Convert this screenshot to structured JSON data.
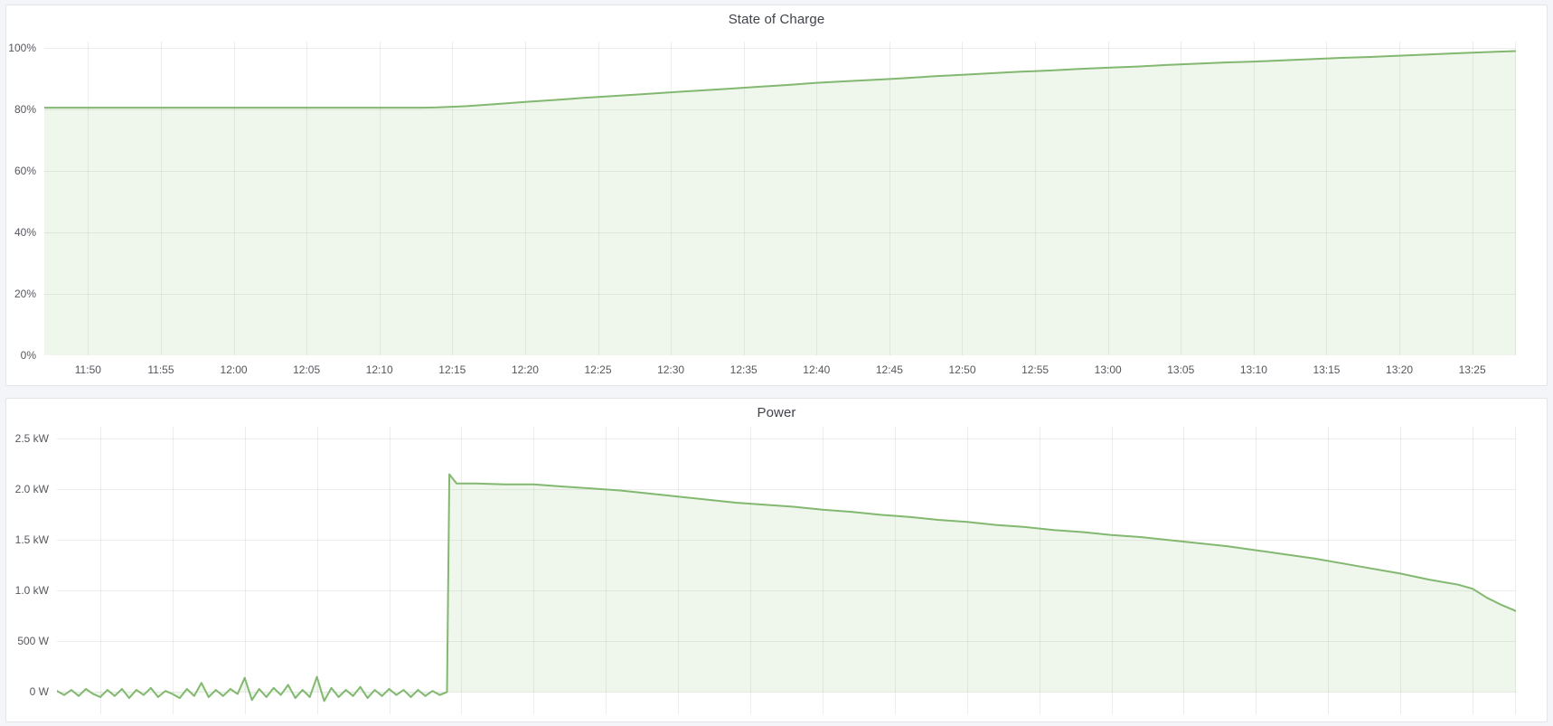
{
  "app": "dashboard",
  "colors": {
    "page_bg": "#f4f5f9",
    "panel_bg": "#ffffff",
    "panel_border": "#e4e5e9",
    "title_text": "#3f434a",
    "axis_text": "#55575d",
    "grid": "rgba(0,0,0,0.07)",
    "series_line": "#82b870",
    "series_fill": "rgba(130,184,112,0.13)"
  },
  "chart_data": [
    {
      "type": "area",
      "title": "State of Charge",
      "xlabel": "",
      "ylabel": "",
      "x_start": "11:47",
      "x_end": "13:28",
      "x_ticks": [
        "11:50",
        "11:55",
        "12:00",
        "12:05",
        "12:10",
        "12:15",
        "12:20",
        "12:25",
        "12:30",
        "12:35",
        "12:40",
        "12:45",
        "12:50",
        "12:55",
        "13:00",
        "13:05",
        "13:10",
        "13:15",
        "13:20",
        "13:25"
      ],
      "x_labels_visible": true,
      "ylim": [
        0,
        102
      ],
      "y_ticks": [
        {
          "value": 0,
          "label": "0%"
        },
        {
          "value": 20,
          "label": "20%"
        },
        {
          "value": 40,
          "label": "40%"
        },
        {
          "value": 60,
          "label": "60%"
        },
        {
          "value": 80,
          "label": "80%"
        },
        {
          "value": 100,
          "label": "100%"
        }
      ],
      "grid": true,
      "legend_position": "none",
      "baseline": 0,
      "series": [
        {
          "name": "State of Charge (%)",
          "points": [
            [
              "11:47",
              80.5
            ],
            [
              "11:55",
              80.5
            ],
            [
              "12:05",
              80.5
            ],
            [
              "12:13",
              80.5
            ],
            [
              "12:14",
              80.6
            ],
            [
              "12:16",
              81.0
            ],
            [
              "12:18",
              81.7
            ],
            [
              "12:20",
              82.4
            ],
            [
              "12:22",
              83.0
            ],
            [
              "12:24",
              83.7
            ],
            [
              "12:26",
              84.3
            ],
            [
              "12:28",
              84.9
            ],
            [
              "12:30",
              85.5
            ],
            [
              "12:32",
              86.1
            ],
            [
              "12:34",
              86.7
            ],
            [
              "12:36",
              87.3
            ],
            [
              "12:38",
              87.9
            ],
            [
              "12:40",
              88.6
            ],
            [
              "12:42",
              89.1
            ],
            [
              "12:44",
              89.6
            ],
            [
              "12:46",
              90.1
            ],
            [
              "12:48",
              90.7
            ],
            [
              "12:50",
              91.2
            ],
            [
              "12:52",
              91.7
            ],
            [
              "12:54",
              92.2
            ],
            [
              "12:56",
              92.6
            ],
            [
              "12:58",
              93.1
            ],
            [
              "13:00",
              93.5
            ],
            [
              "13:02",
              93.9
            ],
            [
              "13:04",
              94.4
            ],
            [
              "13:06",
              94.8
            ],
            [
              "13:08",
              95.2
            ],
            [
              "13:10",
              95.5
            ],
            [
              "13:12",
              95.9
            ],
            [
              "13:14",
              96.3
            ],
            [
              "13:16",
              96.7
            ],
            [
              "13:18",
              97.0
            ],
            [
              "13:20",
              97.4
            ],
            [
              "13:22",
              97.8
            ],
            [
              "13:24",
              98.2
            ],
            [
              "13:26",
              98.6
            ],
            [
              "13:28",
              98.9
            ]
          ]
        }
      ]
    },
    {
      "type": "area",
      "title": "Power",
      "xlabel": "",
      "ylabel": "",
      "x_start": "11:47",
      "x_end": "13:28",
      "x_ticks": [
        "11:50",
        "11:55",
        "12:00",
        "12:05",
        "12:10",
        "12:15",
        "12:20",
        "12:25",
        "12:30",
        "12:35",
        "12:40",
        "12:45",
        "12:50",
        "12:55",
        "13:00",
        "13:05",
        "13:10",
        "13:15",
        "13:20",
        "13:25"
      ],
      "x_labels_visible": false,
      "ylim": [
        -0.22,
        2.62
      ],
      "y_ticks": [
        {
          "value": 0,
          "label": "0 W"
        },
        {
          "value": 0.5,
          "label": "500 W"
        },
        {
          "value": 1.0,
          "label": "1.0 kW"
        },
        {
          "value": 1.5,
          "label": "1.5 kW"
        },
        {
          "value": 2.0,
          "label": "2.0 kW"
        },
        {
          "value": 2.5,
          "label": "2.5 kW"
        }
      ],
      "grid": true,
      "legend_position": "none",
      "baseline": 0,
      "series": [
        {
          "name": "Power (kW)",
          "points": [
            [
              "11:47:00",
              0.01
            ],
            [
              "11:47:30",
              -0.03
            ],
            [
              "11:48:00",
              0.02
            ],
            [
              "11:48:30",
              -0.04
            ],
            [
              "11:49:00",
              0.03
            ],
            [
              "11:49:30",
              -0.02
            ],
            [
              "11:50:00",
              -0.05
            ],
            [
              "11:50:30",
              0.02
            ],
            [
              "11:51:00",
              -0.04
            ],
            [
              "11:51:30",
              0.03
            ],
            [
              "11:52:00",
              -0.06
            ],
            [
              "11:52:30",
              0.02
            ],
            [
              "11:53:00",
              -0.03
            ],
            [
              "11:53:30",
              0.04
            ],
            [
              "11:54:00",
              -0.05
            ],
            [
              "11:54:30",
              0.01
            ],
            [
              "11:55:00",
              -0.02
            ],
            [
              "11:55:30",
              -0.06
            ],
            [
              "11:56:00",
              0.03
            ],
            [
              "11:56:30",
              -0.04
            ],
            [
              "11:57:00",
              0.09
            ],
            [
              "11:57:30",
              -0.05
            ],
            [
              "11:58:00",
              0.02
            ],
            [
              "11:58:30",
              -0.04
            ],
            [
              "11:59:00",
              0.03
            ],
            [
              "11:59:30",
              -0.02
            ],
            [
              "12:00:00",
              0.14
            ],
            [
              "12:00:30",
              -0.08
            ],
            [
              "12:01:00",
              0.03
            ],
            [
              "12:01:30",
              -0.05
            ],
            [
              "12:02:00",
              0.04
            ],
            [
              "12:02:30",
              -0.03
            ],
            [
              "12:03:00",
              0.07
            ],
            [
              "12:03:30",
              -0.06
            ],
            [
              "12:04:00",
              0.02
            ],
            [
              "12:04:30",
              -0.05
            ],
            [
              "12:05:00",
              0.15
            ],
            [
              "12:05:30",
              -0.09
            ],
            [
              "12:06:00",
              0.04
            ],
            [
              "12:06:30",
              -0.05
            ],
            [
              "12:07:00",
              0.02
            ],
            [
              "12:07:30",
              -0.04
            ],
            [
              "12:08:00",
              0.05
            ],
            [
              "12:08:30",
              -0.06
            ],
            [
              "12:09:00",
              0.02
            ],
            [
              "12:09:30",
              -0.04
            ],
            [
              "12:10:00",
              0.03
            ],
            [
              "12:10:30",
              -0.03
            ],
            [
              "12:11:00",
              0.02
            ],
            [
              "12:11:30",
              -0.05
            ],
            [
              "12:12:00",
              0.02
            ],
            [
              "12:12:30",
              -0.04
            ],
            [
              "12:13:00",
              0.01
            ],
            [
              "12:13:30",
              -0.03
            ],
            [
              "12:14:00",
              0.0
            ],
            [
              "12:14:10",
              2.15
            ],
            [
              "12:14:40",
              2.06
            ],
            [
              "12:16",
              2.06
            ],
            [
              "12:18",
              2.05
            ],
            [
              "12:20",
              2.05
            ],
            [
              "12:22",
              2.03
            ],
            [
              "12:24",
              2.01
            ],
            [
              "12:26",
              1.99
            ],
            [
              "12:28",
              1.96
            ],
            [
              "12:30",
              1.93
            ],
            [
              "12:32",
              1.9
            ],
            [
              "12:34",
              1.87
            ],
            [
              "12:36",
              1.85
            ],
            [
              "12:38",
              1.83
            ],
            [
              "12:40",
              1.8
            ],
            [
              "12:42",
              1.78
            ],
            [
              "12:44",
              1.75
            ],
            [
              "12:46",
              1.73
            ],
            [
              "12:48",
              1.7
            ],
            [
              "12:50",
              1.68
            ],
            [
              "12:52",
              1.65
            ],
            [
              "12:54",
              1.63
            ],
            [
              "12:56",
              1.6
            ],
            [
              "12:58",
              1.58
            ],
            [
              "13:00",
              1.55
            ],
            [
              "13:02",
              1.53
            ],
            [
              "13:04",
              1.5
            ],
            [
              "13:06",
              1.47
            ],
            [
              "13:08",
              1.44
            ],
            [
              "13:10",
              1.4
            ],
            [
              "13:12",
              1.36
            ],
            [
              "13:14",
              1.32
            ],
            [
              "13:16",
              1.27
            ],
            [
              "13:18",
              1.22
            ],
            [
              "13:20",
              1.17
            ],
            [
              "13:22",
              1.11
            ],
            [
              "13:24",
              1.06
            ],
            [
              "13:25",
              1.02
            ],
            [
              "13:26",
              0.93
            ],
            [
              "13:27",
              0.86
            ],
            [
              "13:28",
              0.8
            ]
          ]
        }
      ]
    }
  ]
}
